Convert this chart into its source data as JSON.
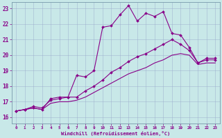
{
  "xlabel": "Windchill (Refroidissement éolien,°C)",
  "bg_color": "#c8e8e8",
  "line_color": "#880088",
  "grid_color": "#99aacc",
  "ylim": [
    15.6,
    23.4
  ],
  "xlim": [
    -0.5,
    23.5
  ],
  "yticks": [
    16,
    17,
    18,
    19,
    20,
    21,
    22,
    23
  ],
  "xticks": [
    0,
    1,
    2,
    3,
    4,
    5,
    6,
    7,
    8,
    9,
    10,
    11,
    12,
    13,
    14,
    15,
    16,
    17,
    18,
    19,
    20,
    21,
    22,
    23
  ],
  "line1_x": [
    0,
    1,
    2,
    3,
    4,
    5,
    6,
    7,
    8,
    9,
    10,
    11,
    12,
    13,
    14,
    15,
    16,
    17,
    18,
    19,
    20,
    21,
    22,
    23
  ],
  "line1_y": [
    16.4,
    16.5,
    16.6,
    16.5,
    17.2,
    17.3,
    17.3,
    18.7,
    18.6,
    19.0,
    21.8,
    21.9,
    22.6,
    23.2,
    22.2,
    22.7,
    22.5,
    22.8,
    21.4,
    21.3,
    20.5,
    19.5,
    19.8,
    19.8
  ],
  "line2_x": [
    0,
    1,
    2,
    3,
    4,
    5,
    6,
    7,
    8,
    9,
    10,
    11,
    12,
    13,
    14,
    15,
    16,
    17,
    18,
    19,
    20,
    21,
    22,
    23
  ],
  "line2_y": [
    16.4,
    16.5,
    16.7,
    16.6,
    17.1,
    17.2,
    17.3,
    17.3,
    17.7,
    18.0,
    18.4,
    18.9,
    19.2,
    19.6,
    19.9,
    20.1,
    20.4,
    20.7,
    21.0,
    20.7,
    20.3,
    19.5,
    19.7,
    19.7
  ],
  "line3_x": [
    0,
    1,
    2,
    3,
    4,
    5,
    6,
    7,
    8,
    9,
    10,
    11,
    12,
    13,
    14,
    15,
    16,
    17,
    18,
    19,
    20,
    21,
    22,
    23
  ],
  "line3_y": [
    16.4,
    16.5,
    16.6,
    16.5,
    16.9,
    17.0,
    17.0,
    17.1,
    17.3,
    17.6,
    17.9,
    18.2,
    18.5,
    18.8,
    19.0,
    19.2,
    19.5,
    19.7,
    20.0,
    20.1,
    20.0,
    19.4,
    19.5,
    19.5
  ]
}
